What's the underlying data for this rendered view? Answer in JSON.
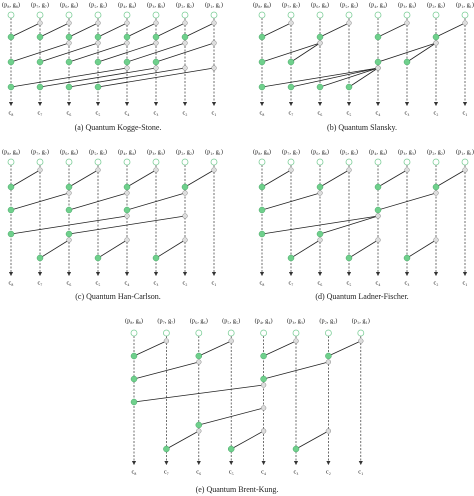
{
  "panels": [
    {
      "caption": "(a) Quantum Kogge-Stone.",
      "inputs": [
        "(p₈, g₈)",
        "(p₇, g₇)",
        "(p₆, g₆)",
        "(p₅, g₅)",
        "(p₄, g₄)",
        "(p₃, g₃)",
        "(p₂, g₂)",
        "(p₁, g₁)"
      ],
      "outputs": [
        "c₈",
        "c₇",
        "c₆",
        "c₅",
        "c₄",
        "c₃",
        "c₂",
        "c₁"
      ]
    },
    {
      "caption": "(b) Quantum Slansky.",
      "inputs": [
        "(p₈, g₈)",
        "(p₇, g₇)",
        "(p₆, g₆)",
        "(p₅, g₅)",
        "(p₄, g₄)",
        "(p₃, g₃)",
        "(p₂, g₂)",
        "(p₁, g₁)"
      ],
      "outputs": [
        "c₈",
        "c₇",
        "c₆",
        "c₅",
        "c₄",
        "c₃",
        "c₂",
        "c₁"
      ]
    },
    {
      "caption": "(c) Quantum Han-Carlson.",
      "inputs": [
        "(p₈, g₈)",
        "(p₇, g₇)",
        "(p₆, g₆)",
        "(p₅, g₅)",
        "(p₄, g₄)",
        "(p₃, g₃)",
        "(p₂, g₂)",
        "(p₁, g₁)"
      ],
      "outputs": [
        "c₈",
        "c₇",
        "c₆",
        "c₅",
        "c₄",
        "c₃",
        "c₂",
        "c₁"
      ]
    },
    {
      "caption": "(d) Quantum Ladner-Fischer.",
      "inputs": [
        "(p₈, g₈)",
        "(p₇, g₇)",
        "(p₆, g₆)",
        "(p₅, g₅)",
        "(p₄, g₄)",
        "(p₃, g₃)",
        "(p₂, g₂)",
        "(p₁, g₁)"
      ],
      "outputs": [
        "c₈",
        "c₇",
        "c₆",
        "c₅",
        "c₄",
        "c₃",
        "c₂",
        "c₁"
      ]
    },
    {
      "caption": "(e) Quantum Brent-Kung.",
      "inputs": [
        "(p₈, g₈)",
        "(p₇, g₇)",
        "(p₆, g₆)",
        "(p₅, g₅)",
        "(p₄, g₄)",
        "(p₃, g₃)",
        "(p₂, g₂)",
        "(p₁, g₁)"
      ],
      "outputs": [
        "c₈",
        "c₇",
        "c₆",
        "c₅",
        "c₄",
        "c₃",
        "c₂",
        "c₁"
      ]
    }
  ]
}
